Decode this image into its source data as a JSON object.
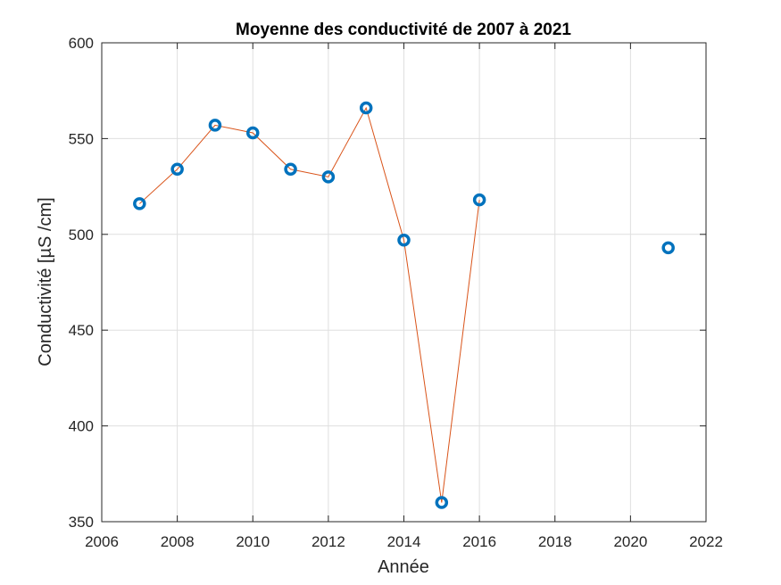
{
  "chart_data": {
    "type": "line",
    "title": "Moyenne des conductivité de 2007 à 2021",
    "xlabel": "Année",
    "ylabel": "Conductivité [µS /cm]",
    "xlim": [
      2006,
      2022
    ],
    "ylim": [
      350,
      600
    ],
    "xticks": [
      2006,
      2008,
      2010,
      2012,
      2014,
      2016,
      2018,
      2020,
      2022
    ],
    "yticks": [
      350,
      400,
      450,
      500,
      550,
      600
    ],
    "grid": true,
    "line_color": "#D95319",
    "marker_color": "#0072BD",
    "line_points": [
      {
        "x": 2007,
        "y": 516
      },
      {
        "x": 2008,
        "y": 534
      },
      {
        "x": 2009,
        "y": 557
      },
      {
        "x": 2010,
        "y": 553
      },
      {
        "x": 2011,
        "y": 534
      },
      {
        "x": 2012,
        "y": 530
      },
      {
        "x": 2013,
        "y": 566
      },
      {
        "x": 2014,
        "y": 497
      },
      {
        "x": 2015,
        "y": 360
      },
      {
        "x": 2016,
        "y": 518
      }
    ],
    "marker_points": [
      {
        "x": 2007,
        "y": 516
      },
      {
        "x": 2008,
        "y": 534
      },
      {
        "x": 2009,
        "y": 557
      },
      {
        "x": 2010,
        "y": 553
      },
      {
        "x": 2011,
        "y": 534
      },
      {
        "x": 2012,
        "y": 530
      },
      {
        "x": 2013,
        "y": 566
      },
      {
        "x": 2014,
        "y": 497
      },
      {
        "x": 2015,
        "y": 360
      },
      {
        "x": 2016,
        "y": 518
      },
      {
        "x": 2021,
        "y": 493
      }
    ]
  }
}
